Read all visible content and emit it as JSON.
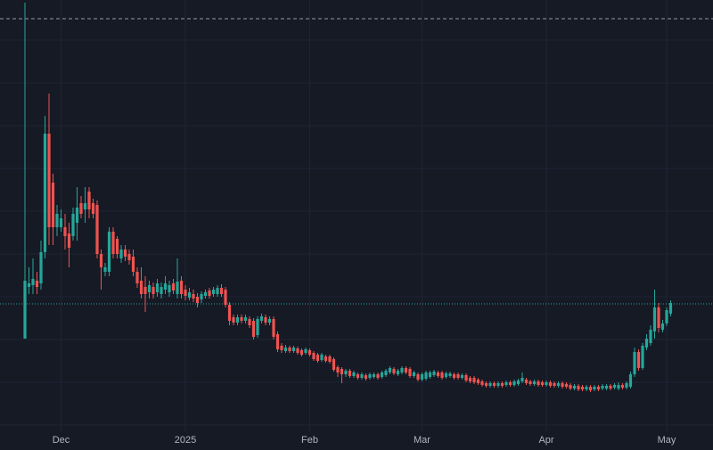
{
  "chart_data": {
    "type": "candlestick",
    "categories": [
      null,
      null,
      null,
      null,
      null,
      null,
      null,
      null,
      null,
      "Dec",
      null,
      null,
      null,
      null,
      null,
      null,
      null,
      null,
      null,
      null,
      null,
      null,
      null,
      null,
      null,
      null,
      null,
      null,
      null,
      null,
      null,
      null,
      null,
      null,
      null,
      null,
      null,
      null,
      null,
      null,
      "2025",
      null,
      null,
      null,
      null,
      null,
      null,
      null,
      null,
      null,
      null,
      null,
      null,
      null,
      null,
      null,
      null,
      null,
      null,
      null,
      null,
      null,
      null,
      null,
      null,
      null,
      null,
      null,
      null,
      null,
      null,
      "Feb",
      null,
      null,
      null,
      null,
      null,
      null,
      null,
      null,
      null,
      null,
      null,
      null,
      null,
      null,
      null,
      null,
      null,
      null,
      null,
      null,
      null,
      null,
      null,
      null,
      null,
      null,
      null,
      "Mar",
      null,
      null,
      null,
      null,
      null,
      null,
      null,
      null,
      null,
      null,
      null,
      null,
      null,
      null,
      null,
      null,
      null,
      null,
      null,
      null,
      null,
      null,
      null,
      null,
      null,
      null,
      null,
      null,
      null,
      null,
      "Apr",
      null,
      null,
      null,
      null,
      null,
      null,
      null,
      null,
      null,
      null,
      null,
      null,
      null,
      null,
      null,
      null,
      null,
      null,
      null,
      null,
      null,
      null,
      null,
      null,
      null,
      null,
      null,
      null,
      null,
      "May",
      null
    ],
    "open": [
      105,
      163,
      165,
      170,
      167,
      202,
      335,
      280,
      230,
      230,
      230,
      223,
      220,
      235,
      257,
      250,
      270,
      257,
      255,
      200,
      180,
      180,
      225,
      217,
      195,
      205,
      200,
      197,
      180,
      170,
      163,
      157,
      163,
      157,
      155,
      160,
      157,
      167,
      155,
      170,
      160,
      151,
      155,
      152,
      149,
      153,
      159,
      155,
      155,
      162,
      160,
      143,
      129,
      123,
      129,
      125,
      127,
      125,
      109,
      125,
      129,
      123,
      127,
      110,
      97,
      91,
      95,
      91,
      94,
      92,
      89,
      92,
      89,
      87,
      81,
      85,
      85,
      82,
      73,
      71,
      65,
      69,
      63,
      65,
      61,
      64,
      61,
      62,
      65,
      62,
      64,
      67,
      71,
      65,
      67,
      72,
      71,
      63,
      65,
      59,
      60,
      62,
      64,
      67,
      67,
      62,
      63,
      65,
      65,
      61,
      64,
      61,
      61,
      59,
      57,
      55,
      52,
      55,
      52,
      55,
      53,
      56,
      53,
      54,
      57,
      59,
      57,
      54,
      57,
      56,
      53,
      56,
      55,
      52,
      55,
      54,
      53,
      49,
      52,
      51,
      48,
      51,
      48,
      51,
      49,
      49,
      52,
      50,
      49,
      53,
      50,
      51,
      65,
      90,
      72,
      95,
      100,
      113,
      140,
      115,
      122,
      133
    ],
    "high": [
      482,
      185,
      195,
      180,
      215,
      355,
      380,
      290,
      255,
      250,
      245,
      235,
      252,
      275,
      265,
      275,
      275,
      262,
      260,
      205,
      190,
      230,
      230,
      220,
      210,
      210,
      205,
      205,
      185,
      185,
      175,
      170,
      168,
      172,
      168,
      175,
      170,
      172,
      195,
      175,
      165,
      162,
      160,
      156,
      158,
      160,
      162,
      163,
      165,
      166,
      163,
      146,
      132,
      132,
      132,
      132,
      130,
      128,
      130,
      133,
      132,
      130,
      130,
      113,
      100,
      98,
      97,
      97,
      96,
      94,
      95,
      94,
      91,
      89,
      89,
      87,
      87,
      84,
      75,
      73,
      71,
      71,
      69,
      67,
      67,
      66,
      67,
      67,
      67,
      69,
      71,
      74,
      73,
      71,
      74,
      74,
      73,
      69,
      67,
      67,
      69,
      69,
      70,
      69,
      69,
      68,
      68,
      67,
      67,
      66,
      66,
      63,
      63,
      61,
      59,
      57,
      57,
      57,
      57,
      57,
      58,
      58,
      59,
      60,
      67,
      61,
      59,
      59,
      59,
      58,
      58,
      58,
      57,
      57,
      57,
      56,
      55,
      54,
      54,
      53,
      53,
      53,
      53,
      53,
      54,
      54,
      54,
      55,
      56,
      55,
      57,
      68,
      95,
      93,
      100,
      110,
      120,
      160,
      145,
      126,
      140,
      148
    ],
    "low": [
      105,
      155,
      155,
      155,
      160,
      195,
      210,
      210,
      220,
      225,
      205,
      185,
      215,
      215,
      240,
      235,
      240,
      240,
      195,
      160,
      175,
      175,
      195,
      195,
      190,
      192,
      188,
      175,
      162,
      150,
      135,
      150,
      150,
      152,
      150,
      155,
      152,
      155,
      150,
      150,
      148,
      148,
      146,
      140,
      145,
      150,
      150,
      152,
      152,
      152,
      140,
      120,
      120,
      120,
      122,
      122,
      117,
      104,
      106,
      122,
      120,
      120,
      104,
      90,
      89,
      89,
      89,
      89,
      87,
      85,
      87,
      85,
      80,
      78,
      79,
      78,
      77,
      68,
      62,
      55,
      62,
      61,
      61,
      59,
      59,
      58,
      59,
      60,
      59,
      60,
      62,
      65,
      64,
      63,
      65,
      65,
      61,
      61,
      57,
      57,
      58,
      60,
      62,
      61,
      59,
      60,
      61,
      59,
      59,
      59,
      56,
      55,
      54,
      53,
      51,
      50,
      50,
      50,
      50,
      50,
      51,
      51,
      51,
      52,
      55,
      53,
      52,
      52,
      51,
      51,
      51,
      50,
      50,
      50,
      49,
      49,
      47,
      47,
      46,
      46,
      46,
      45,
      46,
      46,
      47,
      47,
      47,
      48,
      47,
      48,
      48,
      49,
      62,
      69,
      70,
      92,
      97,
      105,
      112,
      112,
      119,
      130
    ],
    "close": [
      170,
      167,
      172,
      163,
      202,
      335,
      230,
      230,
      245,
      240,
      220,
      207,
      245,
      252,
      245,
      257,
      250,
      245,
      200,
      185,
      185,
      225,
      200,
      200,
      205,
      197,
      193,
      180,
      167,
      155,
      155,
      165,
      155,
      167,
      163,
      167,
      165,
      159,
      169,
      155,
      153,
      157,
      150,
      145,
      155,
      157,
      153,
      160,
      162,
      155,
      143,
      125,
      123,
      129,
      125,
      129,
      120,
      107,
      127,
      130,
      123,
      127,
      107,
      93,
      92,
      95,
      91,
      95,
      89,
      87,
      93,
      87,
      82,
      80,
      87,
      80,
      79,
      70,
      67,
      65,
      69,
      63,
      67,
      61,
      65,
      60,
      65,
      65,
      61,
      67,
      69,
      72,
      66,
      69,
      72,
      67,
      63,
      67,
      59,
      65,
      67,
      67,
      68,
      63,
      61,
      66,
      66,
      61,
      61,
      64,
      58,
      57,
      56,
      55,
      53,
      52,
      55,
      52,
      55,
      52,
      56,
      53,
      57,
      58,
      61,
      55,
      54,
      57,
      53,
      53,
      56,
      52,
      52,
      55,
      51,
      51,
      49,
      52,
      48,
      48,
      51,
      47,
      51,
      48,
      52,
      52,
      49,
      53,
      53,
      50,
      55,
      65,
      90,
      72,
      97,
      105,
      115,
      140,
      117,
      122,
      137,
      145
    ],
    "up_color": "#26a69a",
    "down_color": "#ef5350",
    "ylim": [
      0,
      485
    ],
    "hlines": [
      {
        "value": 464,
        "color": "#9598a1",
        "dash": "dashed"
      },
      {
        "value": 144,
        "color": "#26a69a",
        "dash": "dotted"
      }
    ],
    "grid": true
  }
}
